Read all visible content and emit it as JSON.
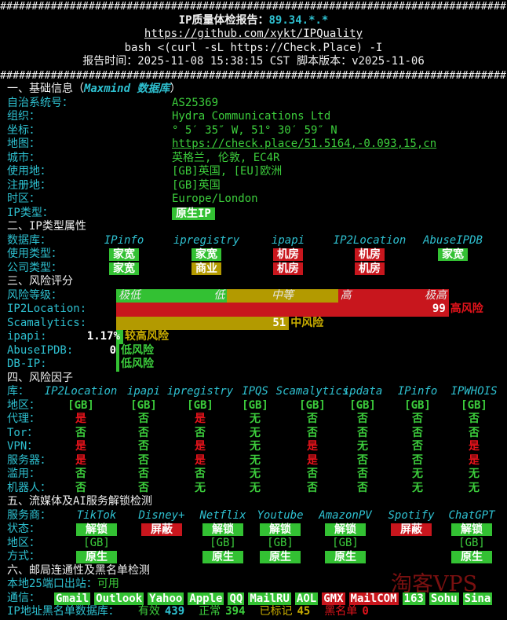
{
  "header": {
    "rule": "################################################################################",
    "title": "IP质量体检报告：",
    "ip": "89.34.*.*",
    "repo": "https://github.com/xykt/IPQuality",
    "command": "bash <(curl -sL https://Check.Place) -I",
    "time_label": "报告时间：",
    "time": "2025-11-08 15:38:15 CST",
    "version_label": "脚本版本：",
    "version": "v2025-11-06"
  },
  "basic": {
    "title": "一、基础信息（",
    "source": "Maxmind 数据库",
    "title_end": "）",
    "rows": [
      {
        "label": "自治系统号：",
        "value": "AS25369"
      },
      {
        "label": "组织：",
        "value": "Hydra Communications Ltd"
      },
      {
        "label": "坐标：",
        "value": "° 5′ 35″ W, 51° 30′ 59″ N"
      },
      {
        "label": "地图：",
        "value": "https://check.place/51.5164,-0.093,15,cn",
        "link": true
      },
      {
        "label": "城市：",
        "value": "英格兰, 伦敦, EC4R"
      },
      {
        "label": "使用地：",
        "value": "[GB]英国, [EU]欧洲"
      },
      {
        "label": "注册地：",
        "value": "[GB]英国"
      },
      {
        "label": "时区：",
        "value": "Europe/London"
      },
      {
        "label": "IP类型：",
        "value": "原生IP",
        "badge": "#33c133"
      }
    ]
  },
  "ip_type": {
    "title": "二、IP类型属性",
    "db_label": "数据库：",
    "databases": [
      "IPinfo",
      "ipregistry",
      "ipapi",
      "IP2Location",
      "AbuseIPDB"
    ],
    "rows": [
      {
        "label": "使用类型：",
        "values": [
          "家宽",
          "家宽",
          "机房",
          "机房",
          "家宽"
        ],
        "colors": [
          "#33c133",
          "#33c133",
          "#c8161d",
          "#c8161d",
          "#33c133"
        ]
      },
      {
        "label": "公司类型：",
        "values": [
          "家宽",
          "商业",
          "机房",
          "机房"
        ],
        "colors": [
          "#33c133",
          "#b39a00",
          "#c8161d",
          "#c8161d"
        ]
      }
    ]
  },
  "risk": {
    "title": "三、风险评分",
    "level_label": "风险等级：",
    "bands": [
      {
        "labels": [
          "极低",
          "低"
        ],
        "color": "#33c133"
      },
      {
        "labels": [
          "中等"
        ],
        "color": "#b39a00"
      },
      {
        "labels": [
          "高",
          "极高"
        ],
        "color": "#c8161d"
      }
    ],
    "scores": [
      {
        "source": "IP2Location:",
        "value": 99,
        "verdict": "高风险",
        "color": "#c8161d",
        "verdict_color": "#e5131b"
      },
      {
        "source": "Scamalytics:",
        "value": 51,
        "verdict": "中风险",
        "color": "#b39a00",
        "verdict_color": "#c9ad00"
      },
      {
        "source": "ipapi:",
        "value": 1.17,
        "value_label": "1.17%",
        "verdict": "较高风险",
        "color": "#33c133",
        "verdict_color": "#c9ad00"
      },
      {
        "source": "AbuseIPDB:",
        "value": 0,
        "verdict": "低风险",
        "color": "#33c133",
        "verdict_color": "#3ccd3c"
      },
      {
        "source": "DB-IP:",
        "value": null,
        "verdict": "低风险",
        "color": "#33c133",
        "verdict_color": "#3ccd3c"
      }
    ]
  },
  "factors": {
    "title": "四、风险因子",
    "db_label": "库：",
    "databases": [
      "IP2Location",
      "ipapi",
      "ipregistry",
      "IPQS",
      "Scamalytics",
      "ipdata",
      "IPinfo",
      "IPWHOIS"
    ],
    "rows": [
      {
        "label": "地区：",
        "values": [
          "[GB]",
          "[GB]",
          "[GB]",
          "[GB]",
          "[GB]",
          "[GB]",
          "[GB]",
          "[GB]"
        ],
        "colors": [
          "#3ccd3c",
          "#3ccd3c",
          "#3ccd3c",
          "#3ccd3c",
          "#3ccd3c",
          "#3ccd3c",
          "#3ccd3c",
          "#3ccd3c"
        ]
      },
      {
        "label": "代理：",
        "values": [
          "是",
          "否",
          "是",
          "无",
          "否",
          "否",
          "否",
          "否"
        ],
        "colors": [
          "#e5131b",
          "#3ccd3c",
          "#e5131b",
          "#3ccd3c",
          "#3ccd3c",
          "#3ccd3c",
          "#3ccd3c",
          "#3ccd3c"
        ]
      },
      {
        "label": "Tor：",
        "values": [
          "否",
          "否",
          "否",
          "无",
          "否",
          "否",
          "否",
          "否"
        ],
        "colors": [
          "#3ccd3c",
          "#3ccd3c",
          "#3ccd3c",
          "#3ccd3c",
          "#3ccd3c",
          "#3ccd3c",
          "#3ccd3c",
          "#3ccd3c"
        ]
      },
      {
        "label": "VPN：",
        "values": [
          "是",
          "否",
          "是",
          "无",
          "是",
          "无",
          "否",
          "是"
        ],
        "colors": [
          "#e5131b",
          "#3ccd3c",
          "#e5131b",
          "#3ccd3c",
          "#e5131b",
          "#3ccd3c",
          "#3ccd3c",
          "#e5131b"
        ]
      },
      {
        "label": "服务器：",
        "values": [
          "是",
          "否",
          "是",
          "无",
          "是",
          "否",
          "否",
          "是"
        ],
        "colors": [
          "#e5131b",
          "#3ccd3c",
          "#e5131b",
          "#3ccd3c",
          "#e5131b",
          "#3ccd3c",
          "#3ccd3c",
          "#e5131b"
        ]
      },
      {
        "label": "滥用：",
        "values": [
          "否",
          "否",
          "否",
          "无",
          "否",
          "否",
          "无",
          "无"
        ],
        "colors": [
          "#3ccd3c",
          "#3ccd3c",
          "#3ccd3c",
          "#3ccd3c",
          "#3ccd3c",
          "#3ccd3c",
          "#3ccd3c",
          "#3ccd3c"
        ]
      },
      {
        "label": "机器人：",
        "values": [
          "否",
          "否",
          "无",
          "无",
          "否",
          "否",
          "无",
          "无"
        ],
        "colors": [
          "#3ccd3c",
          "#3ccd3c",
          "#3ccd3c",
          "#3ccd3c",
          "#3ccd3c",
          "#3ccd3c",
          "#3ccd3c",
          "#3ccd3c"
        ]
      }
    ]
  },
  "streaming": {
    "title": "五、流媒体及AI服务解锁检测",
    "provider_label": "服务商：",
    "providers": [
      "TikTok",
      "Disney+",
      "Netflix",
      "Youtube",
      "AmazonPV",
      "Spotify",
      "ChatGPT"
    ],
    "status_label": "状态：",
    "status": [
      "解锁",
      "屏蔽",
      "解锁",
      "解锁",
      "解锁",
      "屏蔽",
      "解锁"
    ],
    "status_colors": [
      "#33c133",
      "#c8161d",
      "#33c133",
      "#33c133",
      "#33c133",
      "#c8161d",
      "#33c133"
    ],
    "region_label": "地区：",
    "regions": [
      "[GB]",
      null,
      "[GB]",
      "[GB]",
      "[GB]",
      null,
      "[GB]"
    ],
    "mode_label": "方式：",
    "modes": [
      "原生",
      null,
      "原生",
      "原生",
      "原生",
      null,
      "原生"
    ],
    "mode_color": "#33c133"
  },
  "mail": {
    "title": "六、邮局连通性及黑名单检测",
    "port25_label": "本地25端口出站：",
    "port25": "可用",
    "comm_label": "通信：",
    "services": [
      {
        "name": "Gmail",
        "color": "#33c133"
      },
      {
        "name": "Outlook",
        "color": "#33c133"
      },
      {
        "name": "Yahoo",
        "color": "#33c133"
      },
      {
        "name": "Apple",
        "color": "#33c133"
      },
      {
        "name": "QQ",
        "color": "#33c133"
      },
      {
        "name": "MailRU",
        "color": "#33c133"
      },
      {
        "name": "AOL",
        "color": "#33c133"
      },
      {
        "name": "GMX",
        "color": "#c8161d"
      },
      {
        "name": "MailCOM",
        "color": "#c8161d"
      },
      {
        "name": "163",
        "color": "#33c133"
      },
      {
        "name": "Sohu",
        "color": "#33c133"
      },
      {
        "name": "Sina",
        "color": "#33c133"
      }
    ],
    "blacklist_label": "IP地址黑名单数据库：",
    "blacklist": [
      {
        "label": "有效",
        "value": "439",
        "label_color": "#3ccd3c",
        "value_color": "#2ec0d0"
      },
      {
        "label": "正常",
        "value": "394",
        "label_color": "#3ccd3c",
        "value_color": "#3ccd3c"
      },
      {
        "label": "已标记",
        "value": "45",
        "label_color": "#c9ad00",
        "value_color": "#c9ad00"
      },
      {
        "label": "黑名单",
        "value": "0",
        "label_color": "#e5131b",
        "value_color": "#e5131b"
      }
    ]
  },
  "watermark": "淘客VPS"
}
